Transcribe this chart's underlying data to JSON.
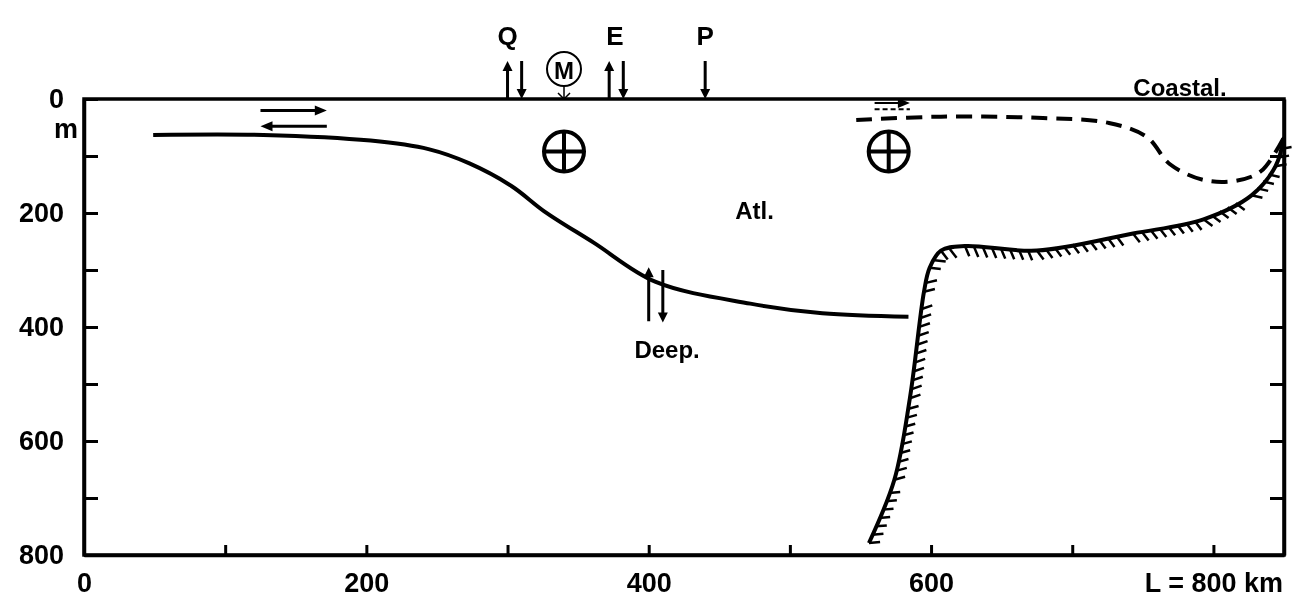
{
  "chart_data": {
    "type": "line",
    "ylabel": "m",
    "xlim": [
      0,
      850
    ],
    "xticks": [
      0,
      {
        "value": 100,
        "label": null
      },
      200,
      {
        "value": 300,
        "label": null
      },
      400,
      {
        "value": 500,
        "label": null
      },
      600,
      {
        "value": 700,
        "label": null
      },
      {
        "value": 800,
        "label": "L = 800 km"
      }
    ],
    "ylim": [
      800,
      0
    ],
    "yticks": [
      0,
      {
        "value": 100,
        "label": null
      },
      200,
      {
        "value": 300,
        "label": null
      },
      400,
      {
        "value": 500,
        "label": null
      },
      600,
      {
        "value": 700,
        "label": null
      },
      800
    ],
    "grid": false,
    "marker": "none",
    "series": [
      {
        "color": "#000000",
        "line_style": "solid",
        "x": [
          49,
          127,
          203,
          244,
          273,
          303,
          326,
          361,
          405,
          472,
          523,
          584
        ],
        "values": [
          63,
          63,
          73,
          88,
          113,
          153,
          197,
          252,
          321,
          359,
          376,
          382
        ]
      },
      {
        "color": "#000000",
        "line_style": "dashed",
        "x": [
          547,
          607,
          675,
          726,
          753,
          769,
          793,
          817,
          834,
          850
        ],
        "values": [
          37,
          31,
          33,
          42,
          67,
          114,
          142,
          143,
          126,
          67
        ]
      },
      {
        "color": "#000000",
        "line_style": "solid",
        "x": [
          556,
          574,
          585,
          595,
          599,
          607,
          624,
          675,
          743,
          793,
          827,
          844,
          850
        ],
        "values": [
          779,
          668,
          525,
          338,
          296,
          266,
          258,
          266,
          236,
          211,
          169,
          118,
          67
        ]
      }
    ],
    "annotations": [
      "Q",
      "E",
      "P",
      "M",
      "Coastal.",
      "Atl.",
      "Deep."
    ]
  }
}
